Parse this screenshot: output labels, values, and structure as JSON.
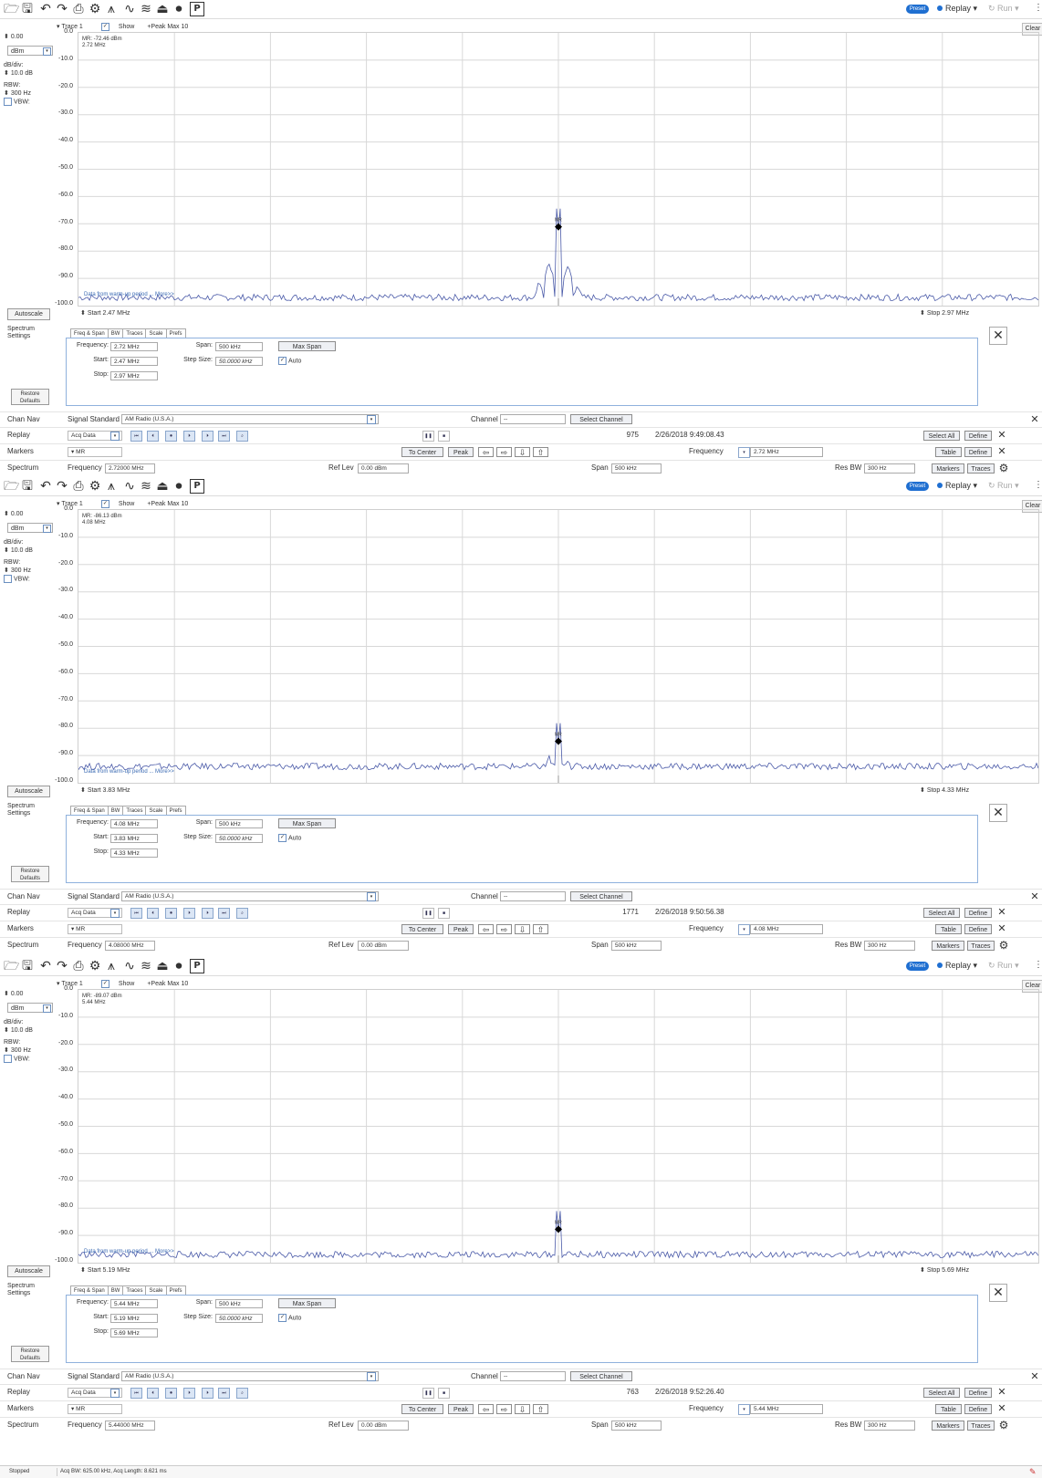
{
  "toolbar": {
    "preset": "Preset",
    "replay": "Replay",
    "run": "Run",
    "clear": "Clear",
    "kebab": "⋮"
  },
  "chart_data": [
    {
      "type": "line",
      "title": "",
      "ylabel": "",
      "ylim": [
        -100,
        0
      ],
      "yticks": [
        "0.0",
        "-10.0",
        "-20.0",
        "-30.0",
        "-40.0",
        "-50.0",
        "-60.0",
        "-70.0",
        "-80.0",
        "-90.0",
        "-100.0"
      ],
      "x_start_mhz": 2.47,
      "x_stop_mhz": 2.97,
      "noise_floor_dbm": -97,
      "peak": {
        "x_mhz": 2.72,
        "y_dbm": -72.46
      },
      "sidebands": [
        {
          "x_mhz": 2.715,
          "y_dbm": -84
        },
        {
          "x_mhz": 2.725,
          "y_dbm": -85
        },
        {
          "x_mhz": 2.71,
          "y_dbm": -91
        },
        {
          "x_mhz": 2.73,
          "y_dbm": -92
        }
      ],
      "legend": []
    },
    {
      "type": "line",
      "title": "",
      "ylabel": "",
      "ylim": [
        -100,
        0
      ],
      "yticks": [
        "0.0",
        "-10.0",
        "-20.0",
        "-30.0",
        "-40.0",
        "-50.0",
        "-60.0",
        "-70.0",
        "-80.0",
        "-90.0",
        "-100.0"
      ],
      "x_start_mhz": 3.83,
      "x_stop_mhz": 4.33,
      "noise_floor_dbm": -94,
      "peak": {
        "x_mhz": 4.08,
        "y_dbm": -86.13
      },
      "sidebands": [
        {
          "x_mhz": 4.075,
          "y_dbm": -90
        },
        {
          "x_mhz": 4.085,
          "y_dbm": -91
        }
      ],
      "legend": []
    },
    {
      "type": "line",
      "title": "",
      "ylabel": "",
      "ylim": [
        -100,
        0
      ],
      "yticks": [
        "0.0",
        "-10.0",
        "-20.0",
        "-30.0",
        "-40.0",
        "-50.0",
        "-60.0",
        "-70.0",
        "-80.0",
        "-90.0",
        "-100.0"
      ],
      "x_start_mhz": 5.19,
      "x_stop_mhz": 5.69,
      "noise_floor_dbm": -97,
      "peak": {
        "x_mhz": 5.44,
        "y_dbm": -89.07
      },
      "sidebands": [],
      "legend": []
    }
  ],
  "panels": [
    {
      "ref_value": "0.00",
      "unit": "dBm",
      "db_div_label": "dB/div:",
      "db_div": "10.0 dB",
      "rbw_label": "RBW:",
      "rbw": "300 Hz",
      "vbw_label": "VBW:",
      "trace": "Trace 1",
      "show": "Show",
      "peak_mode": "+Peak Max 10",
      "readout_line1": "MR: -72.46 dBm",
      "readout_line2": "2.72 MHz",
      "marker_name": "MR",
      "warmup": "Data from warm-up period ... More>>",
      "autoscale": "Autoscale",
      "start": "Start  2.47 MHz",
      "stop": "Stop  2.97 MHz",
      "settings_title": "Spectrum Settings",
      "tabs": [
        "Freq & Span",
        "BW",
        "Traces",
        "Scale",
        "Prefs"
      ],
      "freq_label": "Frequency:",
      "freq": "2.72 MHz",
      "span_label": "Span:",
      "span": "500 kHz",
      "max_span": "Max Span",
      "start_label": "Start:",
      "start_val": "2.47 MHz",
      "step_label": "Step Size:",
      "step": "50.0000 kHz",
      "auto": "Auto",
      "stop_label": "Stop:",
      "stop_val": "2.97 MHz",
      "restore": "Restore Defaults",
      "chan_nav": "Chan Nav",
      "sig_std_label": "Signal Standard",
      "sig_std": "AM Radio (U.S.A.)",
      "channel_label": "Channel",
      "channel": "--",
      "select_channel": "Select Channel",
      "replay_label": "Replay",
      "acq_data": "Acq Data",
      "frame": "975",
      "timestamp": "2/26/2018 9:49:08.43",
      "select_all": "Select All",
      "define": "Define",
      "markers_label": "Markers",
      "marker_sel": "MR",
      "to_center": "To Center",
      "peak_btn": "Peak",
      "frequency_label": "Frequency",
      "marker_freq": "2.72 MHz",
      "table": "Table",
      "spectrum_label": "Spectrum",
      "frequency_field_label": "Frequency",
      "frequency_field": "2.72000 MHz",
      "ref_lev_label": "Ref Lev",
      "ref_lev": "0.00 dBm",
      "span_field_label": "Span",
      "span_field": "500 kHz",
      "res_bw_label": "Res BW",
      "res_bw": "300 Hz",
      "markers_btn": "Markers",
      "traces_btn": "Traces"
    },
    {
      "ref_value": "0.00",
      "unit": "dBm",
      "db_div_label": "dB/div:",
      "db_div": "10.0 dB",
      "rbw_label": "RBW:",
      "rbw": "300 Hz",
      "vbw_label": "VBW:",
      "trace": "Trace 1",
      "show": "Show",
      "peak_mode": "+Peak Max 10",
      "readout_line1": "MR: -86.13 dBm",
      "readout_line2": "4.08 MHz",
      "marker_name": "MR",
      "warmup": "Data from warm-up period ... More>>",
      "autoscale": "Autoscale",
      "start": "Start  3.83 MHz",
      "stop": "Stop  4.33 MHz",
      "settings_title": "Spectrum Settings",
      "tabs": [
        "Freq & Span",
        "BW",
        "Traces",
        "Scale",
        "Prefs"
      ],
      "freq_label": "Frequency:",
      "freq": "4.08 MHz",
      "span_label": "Span:",
      "span": "500 kHz",
      "max_span": "Max Span",
      "start_label": "Start:",
      "start_val": "3.83 MHz",
      "step_label": "Step Size:",
      "step": "50.0000 kHz",
      "auto": "Auto",
      "stop_label": "Stop:",
      "stop_val": "4.33 MHz",
      "restore": "Restore Defaults",
      "chan_nav": "Chan Nav",
      "sig_std_label": "Signal Standard",
      "sig_std": "AM Radio (U.S.A.)",
      "channel_label": "Channel",
      "channel": "--",
      "select_channel": "Select Channel",
      "replay_label": "Replay",
      "acq_data": "Acq Data",
      "frame": "1771",
      "timestamp": "2/26/2018 9:50:56.38",
      "select_all": "Select All",
      "define": "Define",
      "markers_label": "Markers",
      "marker_sel": "MR",
      "to_center": "To Center",
      "peak_btn": "Peak",
      "frequency_label": "Frequency",
      "marker_freq": "4.08 MHz",
      "table": "Table",
      "spectrum_label": "Spectrum",
      "frequency_field_label": "Frequency",
      "frequency_field": "4.08000 MHz",
      "ref_lev_label": "Ref Lev",
      "ref_lev": "0.00 dBm",
      "span_field_label": "Span",
      "span_field": "500 kHz",
      "res_bw_label": "Res BW",
      "res_bw": "300 Hz",
      "markers_btn": "Markers",
      "traces_btn": "Traces"
    },
    {
      "ref_value": "0.00",
      "unit": "dBm",
      "db_div_label": "dB/div:",
      "db_div": "10.0 dB",
      "rbw_label": "RBW:",
      "rbw": "300 Hz",
      "vbw_label": "VBW:",
      "trace": "Trace 1",
      "show": "Show",
      "peak_mode": "+Peak Max 10",
      "readout_line1": "MR: -89.07 dBm",
      "readout_line2": "5.44 MHz",
      "marker_name": "MR",
      "warmup": "Data from warm-up period ... More>>",
      "autoscale": "Autoscale",
      "start": "Start  5.19 MHz",
      "stop": "Stop  5.69 MHz",
      "settings_title": "Spectrum Settings",
      "tabs": [
        "Freq & Span",
        "BW",
        "Traces",
        "Scale",
        "Prefs"
      ],
      "freq_label": "Frequency:",
      "freq": "5.44 MHz",
      "span_label": "Span:",
      "span": "500 kHz",
      "max_span": "Max Span",
      "start_label": "Start:",
      "start_val": "5.19 MHz",
      "step_label": "Step Size:",
      "step": "50.0000 kHz",
      "auto": "Auto",
      "stop_label": "Stop:",
      "stop_val": "5.69 MHz",
      "restore": "Restore Defaults",
      "chan_nav": "Chan Nav",
      "sig_std_label": "Signal Standard",
      "sig_std": "AM Radio (U.S.A.)",
      "channel_label": "Channel",
      "channel": "--",
      "select_channel": "Select Channel",
      "replay_label": "Replay",
      "acq_data": "Acq Data",
      "frame": "763",
      "timestamp": "2/26/2018 9:52:26.40",
      "select_all": "Select All",
      "define": "Define",
      "markers_label": "Markers",
      "marker_sel": "MR",
      "to_center": "To Center",
      "peak_btn": "Peak",
      "frequency_label": "Frequency",
      "marker_freq": "5.44 MHz",
      "table": "Table",
      "spectrum_label": "Spectrum",
      "frequency_field_label": "Frequency",
      "frequency_field": "5.44000 MHz",
      "ref_lev_label": "Ref Lev",
      "ref_lev": "0.00 dBm",
      "span_field_label": "Span",
      "span_field": "500 kHz",
      "res_bw_label": "Res BW",
      "res_bw": "300 Hz",
      "markers_btn": "Markers",
      "traces_btn": "Traces"
    }
  ],
  "status": {
    "state": "Stopped",
    "acq_info": "Acq BW: 625.00 kHz, Acq Length: 8.621 ms"
  },
  "colors": {
    "trace": "#4a5aa8",
    "accent": "#1f6fd1",
    "grid": "#d8d8d8"
  }
}
